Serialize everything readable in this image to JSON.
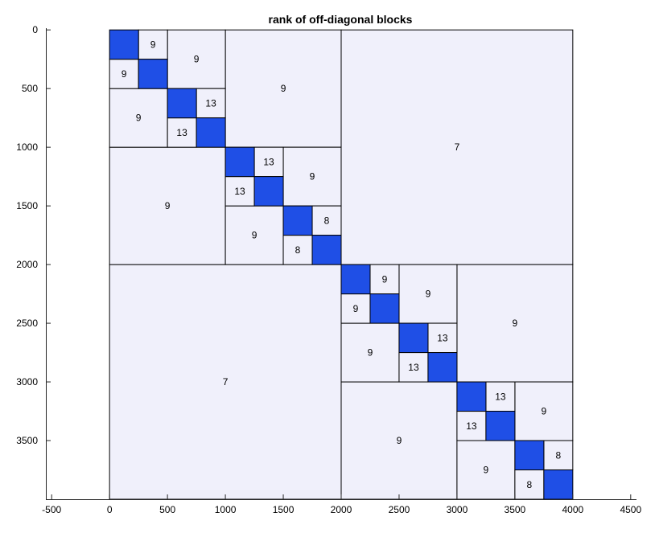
{
  "chart_data": {
    "type": "heatmap",
    "title": "rank of off-diagonal blocks",
    "xlabel": "",
    "ylabel": "",
    "xlim": [
      -550,
      4550
    ],
    "ylim": [
      4000,
      -15
    ],
    "x_ticks": [
      -500,
      0,
      500,
      1000,
      1500,
      2000,
      2500,
      3000,
      3500,
      4000,
      4500
    ],
    "x_tick_labels": [
      "-500",
      "0",
      "500",
      "1000",
      "1500",
      "2000",
      "2500",
      "3000",
      "3500",
      "4000",
      "4500"
    ],
    "y_ticks": [
      0,
      500,
      1000,
      1500,
      2000,
      2500,
      3000,
      3500
    ],
    "y_tick_labels": [
      "0",
      "500",
      "1000",
      "1500",
      "2000",
      "2500",
      "3000",
      "3500"
    ],
    "grid": false,
    "colors": {
      "diagonal_block": "#1f4fe6",
      "offdiag_block": "#f0f0fb",
      "border": "#000000"
    },
    "diagonal_blocks": [
      [
        0,
        250
      ],
      [
        250,
        500
      ],
      [
        500,
        750
      ],
      [
        750,
        1000
      ],
      [
        1000,
        1250
      ],
      [
        1250,
        1500
      ],
      [
        1500,
        1750
      ],
      [
        1750,
        2000
      ],
      [
        2000,
        2250
      ],
      [
        2250,
        2500
      ],
      [
        2500,
        2750
      ],
      [
        2750,
        3000
      ],
      [
        3000,
        3250
      ],
      [
        3250,
        3500
      ],
      [
        3500,
        3750
      ],
      [
        3750,
        4000
      ]
    ],
    "offdiag_blocks": [
      {
        "col": [
          0,
          2000
        ],
        "row": [
          2000,
          4000
        ],
        "rank": "7"
      },
      {
        "col": [
          2000,
          4000
        ],
        "row": [
          0,
          2000
        ],
        "rank": "7"
      },
      {
        "col": [
          0,
          1000
        ],
        "row": [
          1000,
          2000
        ],
        "rank": "9"
      },
      {
        "col": [
          1000,
          2000
        ],
        "row": [
          0,
          1000
        ],
        "rank": "9"
      },
      {
        "col": [
          2000,
          3000
        ],
        "row": [
          3000,
          4000
        ],
        "rank": "9"
      },
      {
        "col": [
          3000,
          4000
        ],
        "row": [
          2000,
          3000
        ],
        "rank": "9"
      },
      {
        "col": [
          0,
          500
        ],
        "row": [
          500,
          1000
        ],
        "rank": "9"
      },
      {
        "col": [
          500,
          1000
        ],
        "row": [
          0,
          500
        ],
        "rank": "9"
      },
      {
        "col": [
          1000,
          1500
        ],
        "row": [
          1500,
          2000
        ],
        "rank": "9"
      },
      {
        "col": [
          1500,
          2000
        ],
        "row": [
          1000,
          1500
        ],
        "rank": "9"
      },
      {
        "col": [
          2000,
          2500
        ],
        "row": [
          2500,
          3000
        ],
        "rank": "9"
      },
      {
        "col": [
          2500,
          3000
        ],
        "row": [
          2000,
          2500
        ],
        "rank": "9"
      },
      {
        "col": [
          3000,
          3500
        ],
        "row": [
          3500,
          4000
        ],
        "rank": "9"
      },
      {
        "col": [
          3500,
          4000
        ],
        "row": [
          3000,
          3500
        ],
        "rank": "9"
      },
      {
        "col": [
          250,
          500
        ],
        "row": [
          0,
          250
        ],
        "rank": "9"
      },
      {
        "col": [
          0,
          250
        ],
        "row": [
          250,
          500
        ],
        "rank": "9"
      },
      {
        "col": [
          750,
          1000
        ],
        "row": [
          500,
          750
        ],
        "rank": "13"
      },
      {
        "col": [
          500,
          750
        ],
        "row": [
          750,
          1000
        ],
        "rank": "13"
      },
      {
        "col": [
          1250,
          1500
        ],
        "row": [
          1000,
          1250
        ],
        "rank": "13"
      },
      {
        "col": [
          1000,
          1250
        ],
        "row": [
          1250,
          1500
        ],
        "rank": "13"
      },
      {
        "col": [
          1750,
          2000
        ],
        "row": [
          1500,
          1750
        ],
        "rank": "8"
      },
      {
        "col": [
          1500,
          1750
        ],
        "row": [
          1750,
          2000
        ],
        "rank": "8"
      },
      {
        "col": [
          2250,
          2500
        ],
        "row": [
          2000,
          2250
        ],
        "rank": "9"
      },
      {
        "col": [
          2000,
          2250
        ],
        "row": [
          2250,
          2500
        ],
        "rank": "9"
      },
      {
        "col": [
          2750,
          3000
        ],
        "row": [
          2500,
          2750
        ],
        "rank": "13"
      },
      {
        "col": [
          2500,
          2750
        ],
        "row": [
          2750,
          3000
        ],
        "rank": "13"
      },
      {
        "col": [
          3250,
          3500
        ],
        "row": [
          3000,
          3250
        ],
        "rank": "13"
      },
      {
        "col": [
          3000,
          3250
        ],
        "row": [
          3250,
          3500
        ],
        "rank": "13"
      },
      {
        "col": [
          3750,
          4000
        ],
        "row": [
          3500,
          3750
        ],
        "rank": "8"
      },
      {
        "col": [
          3500,
          3750
        ],
        "row": [
          3750,
          4000
        ],
        "rank": "8"
      }
    ]
  }
}
